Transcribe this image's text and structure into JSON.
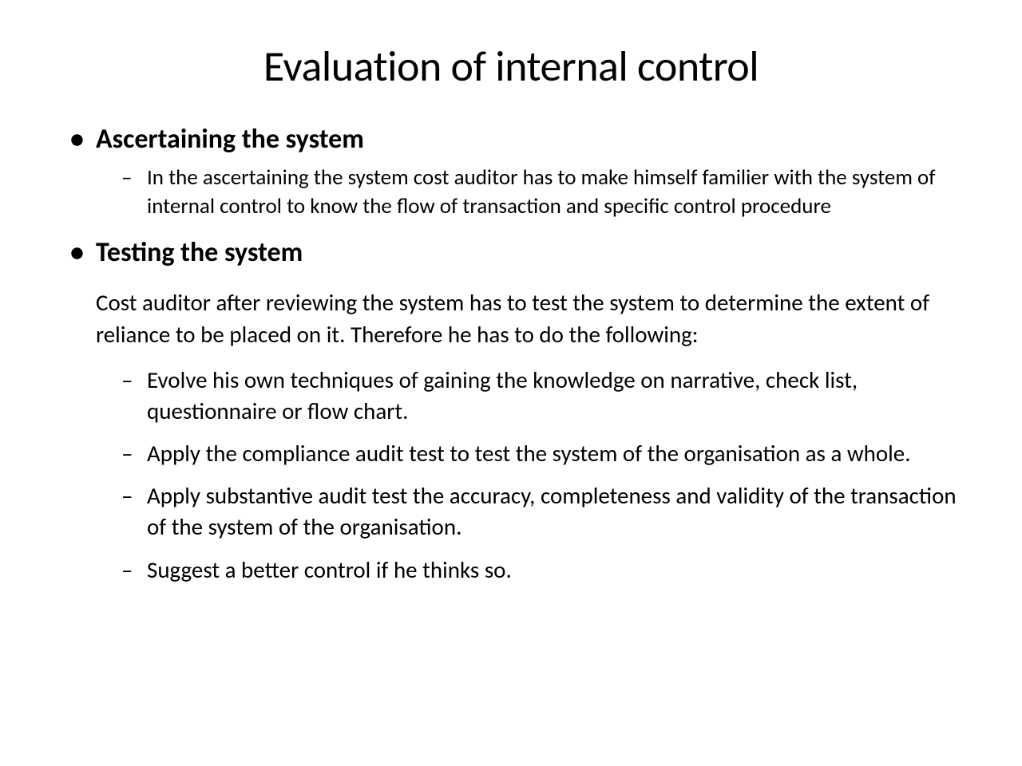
{
  "slide": {
    "title": "Evaluation of internal control",
    "background_color": "#ffffff",
    "text_color": "#000000",
    "title_fontsize": 54,
    "heading_fontsize": 34,
    "body_fontsize": 29,
    "sub_fontsize": 27,
    "sections": [
      {
        "heading": "Ascertaining the system",
        "sub_items": [
          "In the ascertaining the system cost auditor has to make himself familier with the system of internal control to know the flow of transaction and specific control procedure"
        ]
      },
      {
        "heading": "Testing the system",
        "body": "Cost auditor after reviewing the system has to test the system to determine the extent of reliance to be placed on it. Therefore he has to do the following:",
        "sub_items": [
          "Evolve his own techniques of gaining the knowledge on narrative, check list, questionnaire or flow chart.",
          "Apply the compliance audit test to test the system of the organisation as a whole.",
          "Apply substantive audit test the accuracy, completeness and validity of the transaction of the system of the organisation.",
          "Suggest a better control if he thinks so."
        ]
      }
    ]
  }
}
